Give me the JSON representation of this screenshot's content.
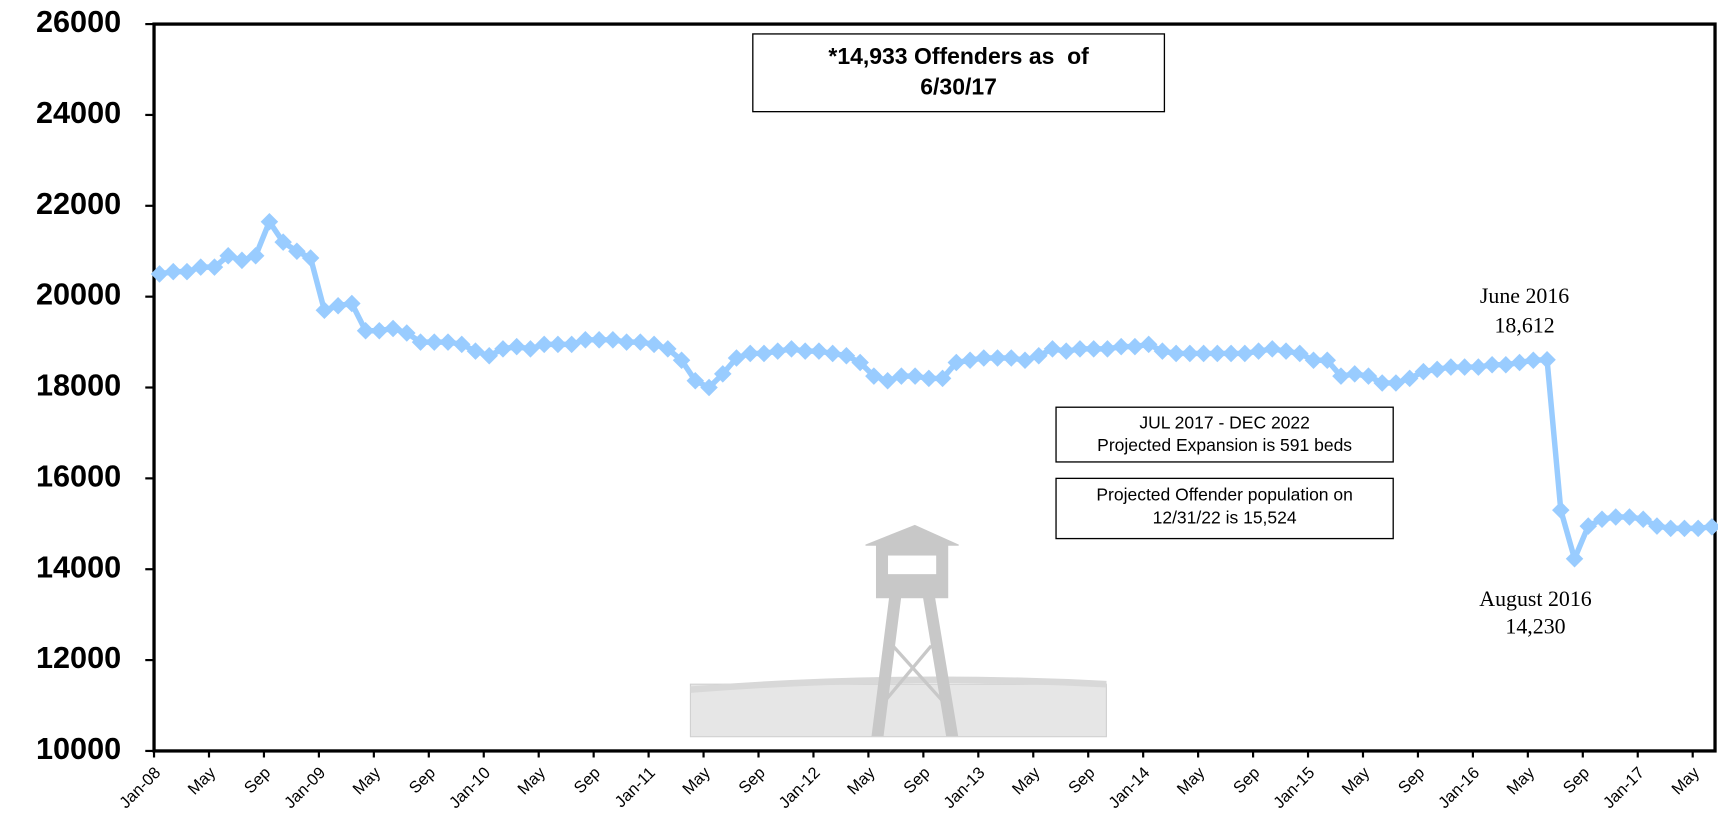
{
  "chart_data": {
    "type": "line",
    "categories": [
      "Jan-08",
      null,
      null,
      null,
      "May",
      null,
      null,
      null,
      "Sep",
      null,
      null,
      null,
      "Jan-09",
      null,
      null,
      null,
      "May",
      null,
      null,
      null,
      "Sep",
      null,
      null,
      null,
      "Jan-10",
      null,
      null,
      null,
      "May",
      null,
      null,
      null,
      "Sep",
      null,
      null,
      null,
      "Jan-11",
      null,
      null,
      null,
      "May",
      null,
      null,
      null,
      "Sep",
      null,
      null,
      null,
      "Jan-12",
      null,
      null,
      null,
      "May",
      null,
      null,
      null,
      "Sep",
      null,
      null,
      null,
      "Jan-13",
      null,
      null,
      null,
      "May",
      null,
      null,
      null,
      "Sep",
      null,
      null,
      null,
      "Jan-14",
      null,
      null,
      null,
      "May",
      null,
      null,
      null,
      "Sep",
      null,
      null,
      null,
      "Jan-15",
      null,
      null,
      null,
      "May",
      null,
      null,
      null,
      "Sep",
      null,
      null,
      null,
      "Jan-16",
      null,
      null,
      null,
      "May",
      null,
      null,
      null,
      "Sep",
      null,
      null,
      null,
      "Jan-17",
      null,
      null,
      null,
      "May",
      null
    ],
    "values": [
      20500,
      20550,
      20550,
      20650,
      20650,
      20900,
      20800,
      20900,
      21650,
      21200,
      21000,
      20850,
      19700,
      19800,
      19850,
      19250,
      19250,
      19300,
      19200,
      19000,
      19000,
      19000,
      18950,
      18800,
      18700,
      18850,
      18900,
      18850,
      18950,
      18950,
      18950,
      19050,
      19050,
      19050,
      19000,
      19000,
      18950,
      18850,
      18600,
      18150,
      18000,
      18300,
      18650,
      18750,
      18750,
      18800,
      18850,
      18800,
      18800,
      18750,
      18700,
      18550,
      18250,
      18150,
      18250,
      18250,
      18200,
      18200,
      18550,
      18600,
      18650,
      18650,
      18650,
      18600,
      18700,
      18850,
      18800,
      18850,
      18850,
      18850,
      18900,
      18900,
      18950,
      18800,
      18750,
      18750,
      18750,
      18750,
      18750,
      18750,
      18800,
      18850,
      18800,
      18750,
      18600,
      18600,
      18250,
      18300,
      18250,
      18100,
      18100,
      18200,
      18350,
      18400,
      18450,
      18450,
      18450,
      18500,
      18500,
      18550,
      18600,
      18612,
      15300,
      14230,
      14950,
      15100,
      15150,
      15150,
      15100,
      14950,
      14900,
      14900,
      14900,
      14933
    ],
    "color": "#99ccff",
    "ylim": [
      10000,
      26000
    ],
    "yticks": [
      10000,
      12000,
      14000,
      16000,
      18000,
      20000,
      22000,
      24000,
      26000
    ],
    "annotations": {
      "headline": [
        "*14,933 Offenders as  of",
        "6/30/17"
      ],
      "expansion": [
        "JUL 2017 - DEC 2022",
        "Projected Expansion is 591 beds"
      ],
      "projection": [
        "Projected Offender population on",
        "12/31/22 is 15,524"
      ],
      "june": [
        "June 2016",
        "18,612"
      ],
      "august": [
        "August 2016",
        "14,230"
      ]
    }
  }
}
